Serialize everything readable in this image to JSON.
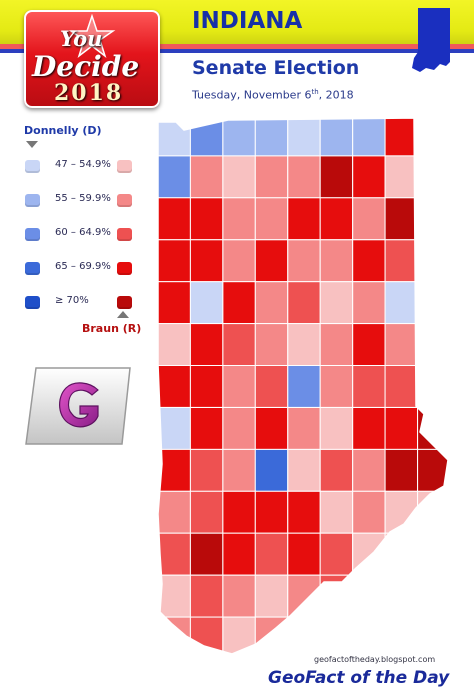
{
  "header": {
    "state": "INDIANA",
    "title": "Senate Election",
    "date_prefix": "Tuesday, November 6",
    "date_sup": "th",
    "date_suffix": ", 2018",
    "badge_you": "You",
    "badge_decide": "Decide",
    "badge_year": "2018"
  },
  "legend": {
    "dem_name": "Donnelly (D)",
    "rep_name": "Braun (R)",
    "ranges": [
      "47 – 54.9%",
      "55 – 59.9%",
      "60 – 64.9%",
      "65 – 69.9%",
      "≥ 70%"
    ],
    "dem_colors": [
      "#c9d6f6",
      "#9db5ef",
      "#6b8ee6",
      "#3b6ad9",
      "#1f4fc9"
    ],
    "rep_colors": [
      "#f8c1c1",
      "#f48888",
      "#ee5151",
      "#e60d0d",
      "#b90a0a"
    ]
  },
  "footer": {
    "url": "geofactoftheday.blogspot.com",
    "brand": "GeoFact of the Day"
  },
  "map": {
    "counties": [
      [
        "D1",
        "D3",
        "D2",
        "D2",
        "D1",
        "D2",
        "D2",
        "R4",
        "R3"
      ],
      [
        "D3",
        "R2",
        "R1",
        "R2",
        "R2",
        "R5",
        "R4",
        "R1",
        "R1"
      ],
      [
        "R4",
        "R4",
        "R2",
        "R2",
        "R4",
        "R4",
        "R2",
        "R5",
        "R4"
      ],
      [
        "R4",
        "R4",
        "R2",
        "R4",
        "R2",
        "R2",
        "R4",
        "R3",
        "R3"
      ],
      [
        "R4",
        "D1",
        "R4",
        "R2",
        "R3",
        "R1",
        "R2",
        "D1",
        "R3"
      ],
      [
        "R1",
        "R4",
        "R3",
        "R2",
        "R1",
        "R2",
        "R4",
        "R2",
        "R2"
      ],
      [
        "R4",
        "R4",
        "R2",
        "R3",
        "D3",
        "R2",
        "R3",
        "R3",
        "R3"
      ],
      [
        "D1",
        "R4",
        "R2",
        "R4",
        "R2",
        "R1",
        "R4",
        "R4",
        "R5"
      ],
      [
        "R4",
        "R3",
        "R2",
        "D4",
        "R1",
        "R3",
        "R2",
        "R5",
        "R5"
      ],
      [
        "R2",
        "R3",
        "R4",
        "R4",
        "R4",
        "R1",
        "R2",
        "R1",
        "R1"
      ],
      [
        "R3",
        "R5",
        "R4",
        "R3",
        "R4",
        "R3",
        "R1",
        "R1",
        "R1"
      ],
      [
        "R1",
        "R3",
        "R2",
        "R1",
        "R2",
        "R3",
        "R2",
        "R1",
        "R1"
      ],
      [
        "R2",
        "R3",
        "R1",
        "R2",
        "R1",
        "R1",
        "R2",
        "R1",
        "R1"
      ]
    ]
  }
}
